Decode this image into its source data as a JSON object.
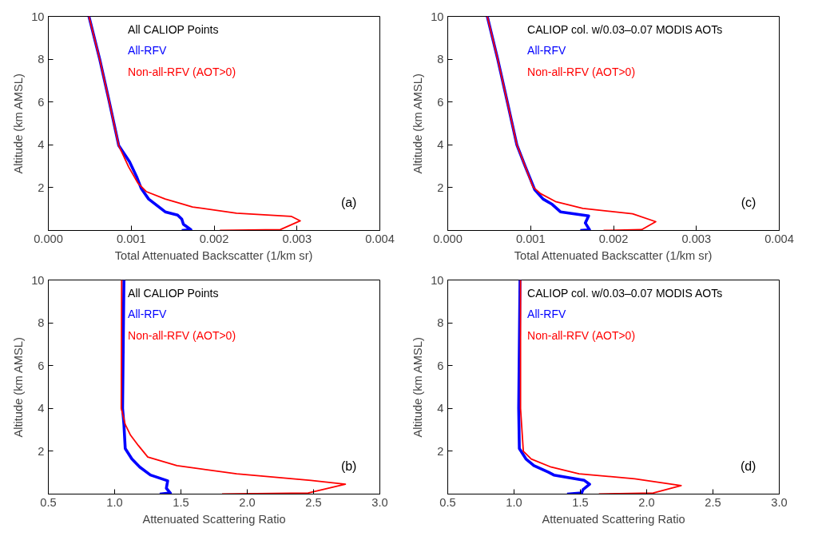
{
  "chart_data": [
    {
      "type": "line",
      "xlabel": "Total Attenuated Backscatter (1/km sr)",
      "ylabel": "Altitude (km AMSL)",
      "annotations": [
        "All CALIOP Points",
        "(a)"
      ],
      "legend": "top",
      "xlim": [
        0,
        0.004
      ],
      "xticks": [
        {
          "value": 0,
          "label": "0.000"
        },
        0.001,
        0.002,
        0.003,
        0.004
      ],
      "ylim": [
        0,
        10
      ],
      "yticks": [
        2,
        4,
        6,
        8,
        10
      ],
      "grid": false,
      "series": [
        {
          "name": "All-RFV",
          "color": "#0000ff",
          "x": [
            0.00049,
            0.00062,
            0.000736,
            0.00085,
            0.00098,
            0.00107,
            0.00112,
            0.00121,
            0.00141,
            0.00156,
            0.00161,
            0.00163,
            0.00172,
            0.00161
          ],
          "values": [
            10,
            8,
            6,
            3.96,
            3.21,
            2.47,
            1.97,
            1.47,
            0.87,
            0.72,
            0.53,
            0.29,
            0.04,
            0
          ]
        },
        {
          "name": "Non-all-RFV (AOT>0)",
          "color": "#ff0000",
          "x": [
            0.00049,
            0.00062,
            0.000736,
            0.00085,
            0.00097,
            0.00108,
            0.00118,
            0.00141,
            0.00174,
            0.00227,
            0.00293,
            0.00304,
            0.0028,
            0.00207
          ],
          "values": [
            10,
            8,
            6,
            3.96,
            2.96,
            2.22,
            1.82,
            1.47,
            1.1,
            0.81,
            0.66,
            0.45,
            0.04,
            0
          ]
        }
      ]
    },
    {
      "type": "line",
      "xlabel": "Total Attenuated Backscatter (1/km sr)",
      "ylabel": "Altitude (km AMSL)",
      "annotations": [
        "CALIOP col. w/0.03–0.07 MODIS AOTs",
        "(c)"
      ],
      "legend": "top",
      "xlim": [
        0,
        0.004
      ],
      "xticks": [
        {
          "value": 0,
          "label": "0.000"
        },
        0.001,
        0.002,
        0.003,
        0.004
      ],
      "ylim": [
        0,
        10
      ],
      "yticks": [
        2,
        4,
        6,
        8,
        10
      ],
      "grid": false,
      "series": [
        {
          "name": "All-RFV",
          "color": "#0000ff",
          "x": [
            0.000477,
            0.000603,
            0.000719,
            0.000834,
            0.000934,
            0.00105,
            0.00115,
            0.00126,
            0.00136,
            0.0017,
            0.00166,
            0.00171,
            0.0016
          ],
          "values": [
            10,
            8,
            6,
            4,
            3,
            1.9,
            1.47,
            1.22,
            0.87,
            0.68,
            0.35,
            0.04,
            0
          ]
        },
        {
          "name": "Non-all-RFV (AOT>0)",
          "color": "#ff0000",
          "x": [
            0.000477,
            0.000603,
            0.000719,
            0.000834,
            0.000934,
            0.00103,
            0.00112,
            0.0013,
            0.00163,
            0.00223,
            0.00251,
            0.00234,
            0.00188
          ],
          "values": [
            10,
            8,
            6,
            4,
            3,
            2.03,
            1.72,
            1.35,
            1.03,
            0.78,
            0.41,
            0.04,
            0
          ]
        }
      ]
    },
    {
      "type": "line",
      "xlabel": "Attenuated Scattering Ratio",
      "ylabel": "Altitude (km AMSL)",
      "annotations": [
        "All CALIOP Points",
        "(b)"
      ],
      "legend": "top",
      "xlim": [
        0.5,
        3.0
      ],
      "xticks": [
        {
          "value": 0.5,
          "label": "0.5"
        },
        {
          "value": 1,
          "label": "1.0"
        },
        {
          "value": 1.5,
          "label": "1.5"
        },
        {
          "value": 2,
          "label": "2.0"
        },
        {
          "value": 2.5,
          "label": "2.5"
        },
        {
          "value": 3,
          "label": "3.0"
        }
      ],
      "ylim": [
        0,
        10
      ],
      "yticks": [
        2,
        4,
        6,
        8,
        10
      ],
      "grid": false,
      "series": [
        {
          "name": "All-RFV",
          "color": "#0000ff",
          "x": [
            1.07,
            1.06,
            1.07,
            1.08,
            1.13,
            1.19,
            1.27,
            1.4,
            1.39,
            1.42,
            1.34
          ],
          "values": [
            10,
            4,
            3.25,
            2.13,
            1.64,
            1.26,
            0.89,
            0.62,
            0.27,
            0.05,
            0
          ]
        },
        {
          "name": "Non-all-RFV (AOT>0)",
          "color": "#ff0000",
          "x": [
            1.053,
            1.05,
            1.08,
            1.12,
            1.18,
            1.25,
            1.47,
            1.92,
            2.48,
            2.74,
            2.46,
            1.81
          ],
          "values": [
            10,
            4,
            3.25,
            2.75,
            2.26,
            1.73,
            1.33,
            0.95,
            0.64,
            0.46,
            0.05,
            0
          ]
        }
      ]
    },
    {
      "type": "line",
      "xlabel": "Attenuated Scattering Ratio",
      "ylabel": "Altitude (km AMSL)",
      "annotations": [
        "CALIOP col. w/0.03–0.07 MODIS AOTs",
        "(d)"
      ],
      "legend": "top",
      "xlim": [
        0.5,
        3.0
      ],
      "xticks": [
        {
          "value": 0.5,
          "label": "0.5"
        },
        {
          "value": 1,
          "label": "1.0"
        },
        {
          "value": 1.5,
          "label": "1.5"
        },
        {
          "value": 2,
          "label": "2.0"
        },
        {
          "value": 2.5,
          "label": "2.5"
        },
        {
          "value": 3,
          "label": "3.0"
        }
      ],
      "ylim": [
        0,
        10
      ],
      "yticks": [
        2,
        4,
        6,
        8,
        10
      ],
      "grid": false,
      "series": [
        {
          "name": "All-RFV",
          "color": "#0000ff",
          "x": [
            1.045,
            1.035,
            1.04,
            1.09,
            1.15,
            1.26,
            1.3,
            1.53,
            1.57,
            1.52,
            1.51,
            1.4
          ],
          "values": [
            10,
            4,
            2.13,
            1.64,
            1.33,
            1.02,
            0.89,
            0.64,
            0.46,
            0.21,
            0.05,
            0
          ]
        },
        {
          "name": "Non-all-RFV (AOT>0)",
          "color": "#ff0000",
          "x": [
            1.049,
            1.049,
            1.07,
            1.13,
            1.28,
            1.49,
            1.91,
            2.26,
            2.05,
            1.64
          ],
          "values": [
            10,
            4,
            2,
            1.64,
            1.26,
            0.95,
            0.71,
            0.4,
            0.05,
            0
          ]
        }
      ]
    }
  ]
}
